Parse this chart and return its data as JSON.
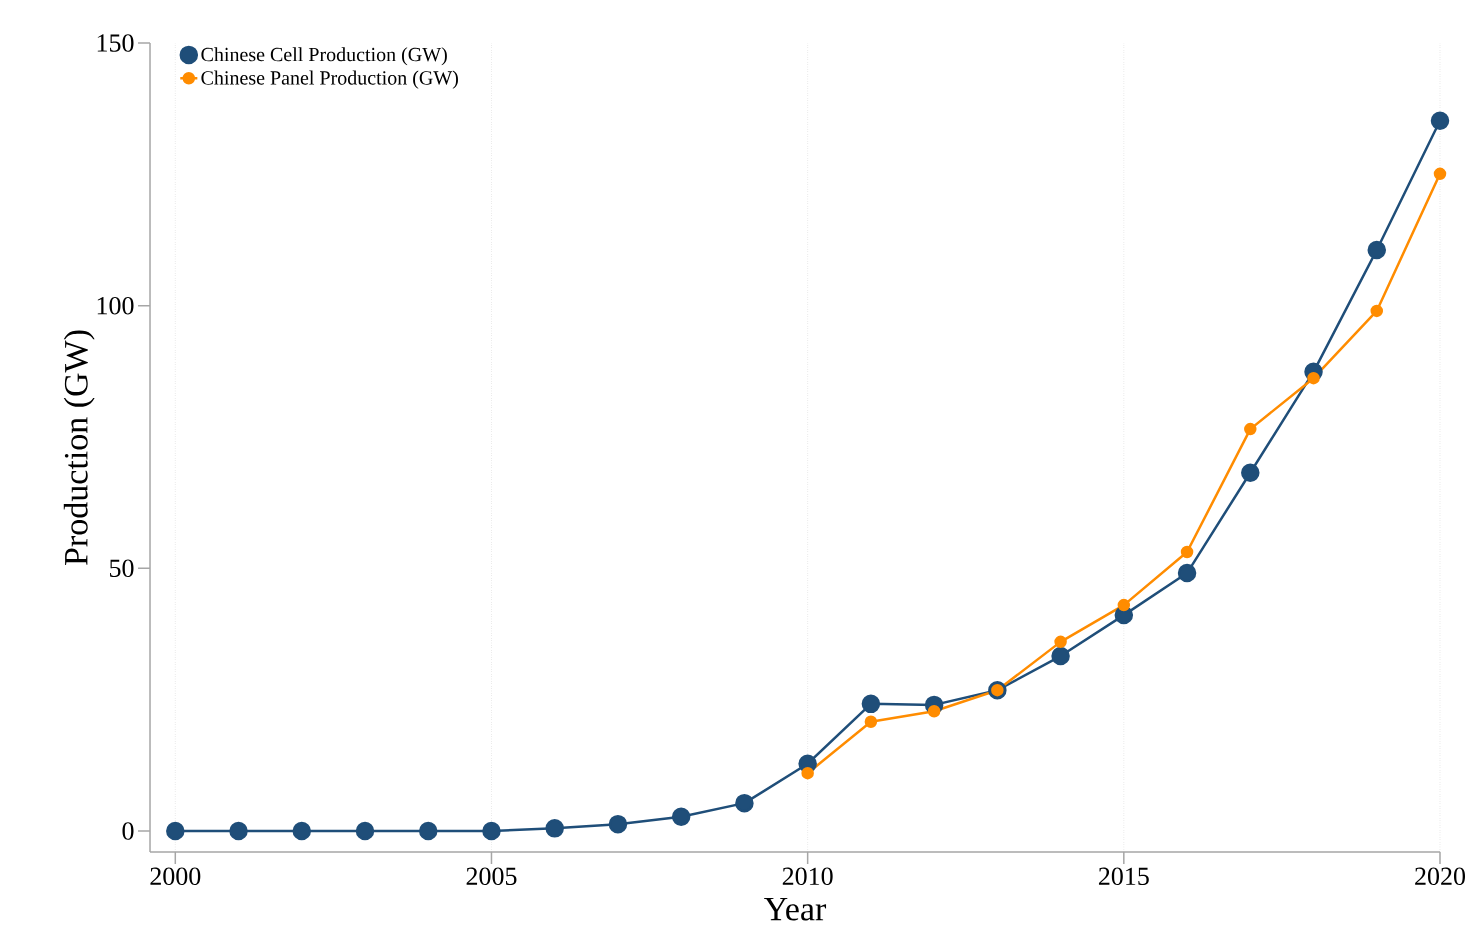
{
  "chart_data": {
    "type": "line",
    "xlabel": "Year",
    "ylabel": "Production (GW)",
    "x": [
      2000,
      2001,
      2002,
      2003,
      2004,
      2005,
      2006,
      2007,
      2008,
      2009,
      2010,
      2011,
      2012,
      2013,
      2014,
      2015,
      2016,
      2017,
      2018,
      2019,
      2020
    ],
    "series": [
      {
        "name": "Chinese Cell Production (GW)",
        "color": "#1f4e79",
        "values": [
          0,
          0,
          0,
          0,
          0,
          0,
          0.5,
          1.3,
          2.7,
          5.3,
          12.8,
          24.2,
          24.0,
          26.8,
          33.3,
          41.1,
          49.1,
          68.2,
          87.4,
          110.6,
          135.2
        ]
      },
      {
        "name": "Chinese Panel Production (GW)",
        "color": "#ff8c00",
        "values": [
          null,
          null,
          null,
          null,
          null,
          null,
          null,
          null,
          null,
          null,
          11.0,
          20.8,
          22.8,
          26.8,
          36.0,
          43.0,
          53.1,
          76.5,
          86.2,
          99.0,
          125.1
        ]
      }
    ],
    "xlim": [
      1999.6,
      2020
    ],
    "ylim": [
      -4,
      150
    ],
    "xticks": [
      2000,
      2005,
      2010,
      2015,
      2020
    ],
    "yticks": [
      0,
      50,
      100,
      150
    ],
    "grid": "x",
    "legend": "top left",
    "marker": "circle",
    "line_style": "solid"
  }
}
